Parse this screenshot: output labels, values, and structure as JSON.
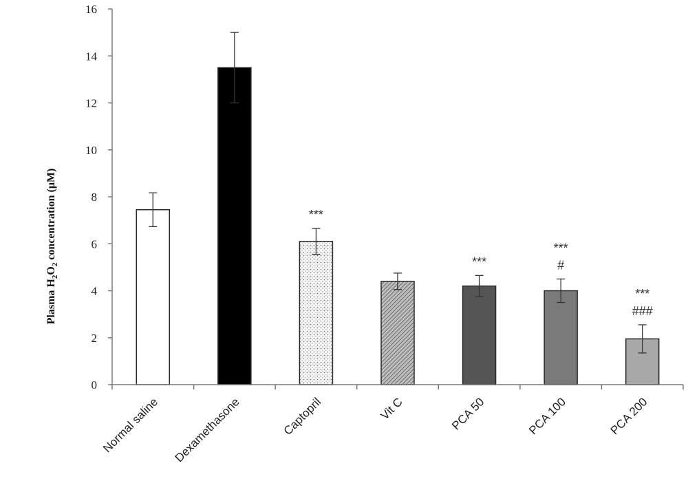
{
  "chart_data": {
    "type": "bar",
    "ylabel": {
      "prefix": "Plasma H",
      "sub1": "2",
      "mid": "O",
      "sub2": "2",
      "suffix": " concentration (μM)"
    },
    "ylim": [
      0,
      16
    ],
    "yticks": [
      0,
      2,
      4,
      6,
      8,
      10,
      12,
      14,
      16
    ],
    "grid": false,
    "categories": [
      "Normal saline",
      "Dexamethasone",
      "Captopril",
      "Vit C",
      "PCA 50",
      "PCA 100",
      "PCA 200"
    ],
    "values": [
      7.45,
      13.5,
      6.1,
      4.4,
      4.2,
      4.0,
      1.95
    ],
    "errors": [
      0.72,
      1.5,
      0.55,
      0.35,
      0.45,
      0.5,
      0.6
    ],
    "fills": [
      "#ffffff",
      "#000000",
      "dots",
      "hatch",
      "#555555",
      "#7a7a7a",
      "#a8a8a8"
    ],
    "annotations": [
      {
        "category": "Captopril",
        "lines": [
          "***"
        ]
      },
      {
        "category": "PCA 50",
        "lines": [
          "***"
        ]
      },
      {
        "category": "PCA 100",
        "lines": [
          "***",
          "#"
        ]
      },
      {
        "category": "PCA 200",
        "lines": [
          "***",
          "###"
        ]
      }
    ]
  }
}
